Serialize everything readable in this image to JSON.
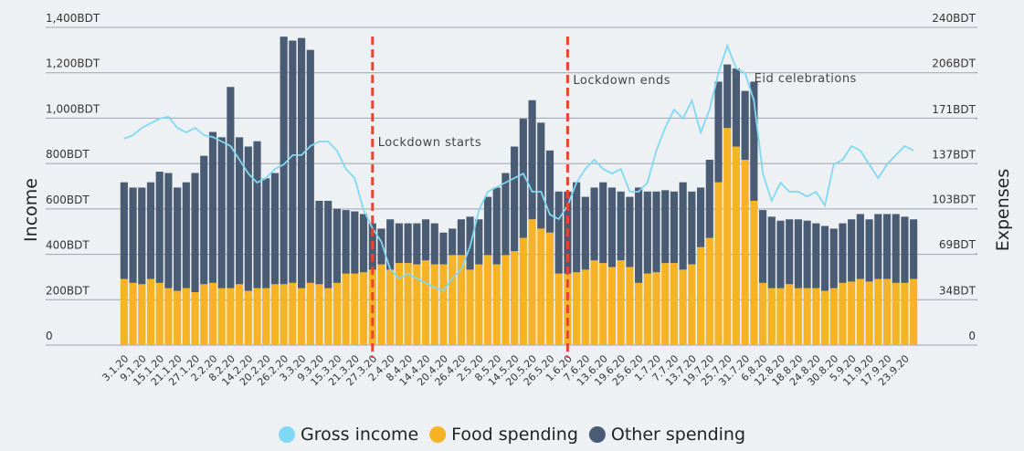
{
  "chart_data": {
    "type": "bar",
    "categories": [
      "3.1.20",
      null,
      "9.1.20",
      null,
      "15.1.20",
      null,
      "21.1.20",
      null,
      "27.1.20",
      null,
      "2.2.20",
      null,
      "8.2.20",
      null,
      "14.2.20",
      null,
      "20.2.20",
      null,
      "26.2.20",
      null,
      "3.3.20",
      null,
      "9.3.20",
      null,
      "15.3.20",
      null,
      "21.3.20",
      null,
      "27.3.20",
      null,
      "2.4.20",
      null,
      "8.4.20",
      null,
      "14.4.20",
      null,
      "20.4.20",
      null,
      "26.4.20",
      null,
      "2.5.20",
      null,
      "8.5.20",
      null,
      "14.5.20",
      null,
      "20.5.20",
      null,
      "26.5.20",
      null,
      "1.6.20",
      null,
      "7.6.20",
      null,
      "13.6.20",
      null,
      "19.6.20",
      null,
      "25.6.20",
      null,
      "1.7.20",
      null,
      "7.7.20",
      null,
      "13.7.20",
      null,
      "19.7.20",
      null,
      "25.7.20",
      null,
      "31.7.20",
      null,
      "6.8.20",
      null,
      "12.8.20",
      null,
      "18.8.20",
      null,
      "24.8.20",
      null,
      "30.8.20",
      null,
      "5.9.20",
      null,
      "11.9.20",
      null,
      "17.9.20",
      null,
      "23.9.20",
      null
    ],
    "series": [
      {
        "name": "Gross income",
        "type": "line",
        "axis": "y",
        "color": "#7fd9f4",
        "values": [
          909,
          925,
          957,
          977,
          998,
          1006,
          957,
          937,
          957,
          925,
          917,
          897,
          877,
          817,
          756,
          716,
          736,
          776,
          796,
          837,
          837,
          877,
          897,
          897,
          857,
          776,
          736,
          595,
          515,
          455,
          334,
          294,
          314,
          294,
          274,
          253,
          241,
          294,
          334,
          434,
          595,
          676,
          696,
          716,
          736,
          756,
          676,
          676,
          575,
          555,
          615,
          716,
          776,
          817,
          776,
          756,
          776,
          676,
          676,
          716,
          857,
          957,
          1038,
          998,
          1078,
          937,
          1038,
          1199,
          1319,
          1219,
          1199,
          1078,
          756,
          636,
          716,
          676,
          676,
          655,
          676,
          615,
          796,
          817,
          877,
          857,
          796,
          736,
          796,
          837,
          877,
          857
        ]
      },
      {
        "name": "Food spending",
        "type": "bar",
        "axis": "y2",
        "color": "#f5b325",
        "values": [
          50,
          47,
          46,
          50,
          47,
          43,
          41,
          43,
          40,
          46,
          47,
          43,
          43,
          46,
          41,
          43,
          43,
          46,
          46,
          47,
          43,
          47,
          46,
          43,
          47,
          54,
          54,
          55,
          57,
          61,
          57,
          62,
          62,
          61,
          64,
          61,
          61,
          68,
          68,
          57,
          61,
          68,
          61,
          68,
          71,
          81,
          95,
          88,
          85,
          54,
          54,
          55,
          57,
          64,
          62,
          59,
          64,
          59,
          47,
          54,
          55,
          62,
          62,
          57,
          61,
          74,
          81,
          123,
          164,
          150,
          140,
          109,
          47,
          43,
          43,
          46,
          43,
          43,
          43,
          41,
          43,
          47,
          48,
          50,
          48,
          50,
          50,
          47,
          47,
          50
        ]
      },
      {
        "name": "Other spending",
        "type": "bar",
        "axis": "y2",
        "color": "#4a5c73",
        "values": [
          73,
          72,
          73,
          73,
          84,
          87,
          78,
          80,
          90,
          97,
          114,
          114,
          152,
          111,
          109,
          111,
          83,
          84,
          187,
          183,
          189,
          176,
          63,
          66,
          56,
          48,
          47,
          44,
          35,
          27,
          38,
          30,
          30,
          31,
          31,
          31,
          24,
          20,
          27,
          40,
          34,
          44,
          58,
          62,
          79,
          90,
          90,
          80,
          62,
          62,
          62,
          68,
          55,
          55,
          61,
          60,
          52,
          53,
          72,
          62,
          61,
          55,
          54,
          66,
          55,
          45,
          59,
          76,
          48,
          59,
          52,
          90,
          55,
          54,
          51,
          49,
          52,
          51,
          49,
          49,
          45,
          45,
          47,
          49,
          47,
          49,
          49,
          52,
          50,
          45
        ]
      }
    ],
    "ylabel": "Income",
    "y2label": "Expenses",
    "ylim": [
      0,
      1400
    ],
    "yticks": [
      0,
      {
        "value": 200,
        "label": "200BDT"
      },
      {
        "value": 400,
        "label": "400BDT"
      },
      {
        "value": 600,
        "label": "600BDT"
      },
      {
        "value": 800,
        "label": "800BDT"
      },
      {
        "value": 1000,
        "label": "1,000BDT"
      },
      {
        "value": 1200,
        "label": "1,200BDT"
      },
      {
        "value": 1400,
        "label": "1,400BDT"
      }
    ],
    "y2lim": [
      0,
      240
    ],
    "y2ticks": [
      0,
      {
        "value": 34,
        "label": "34BDT"
      },
      {
        "value": 69,
        "label": "69BDT"
      },
      {
        "value": 103,
        "label": "103BDT"
      },
      {
        "value": 137,
        "label": "137BDT"
      },
      {
        "value": 171,
        "label": "171BDT"
      },
      {
        "value": 206,
        "label": "206BDT"
      },
      {
        "value": 240,
        "label": "240BDT"
      }
    ],
    "grid": true,
    "legend": "bottom",
    "annotations": [
      {
        "text": "Lockdown starts",
        "x": "27.3.20",
        "line": true,
        "color": "#e8452c"
      },
      {
        "text": "Lockdown ends",
        "x": "1.6.20",
        "line": true,
        "color": "#e8452c"
      },
      {
        "text": "Eid celebrations",
        "x": "31.7.20",
        "line": false
      }
    ]
  }
}
